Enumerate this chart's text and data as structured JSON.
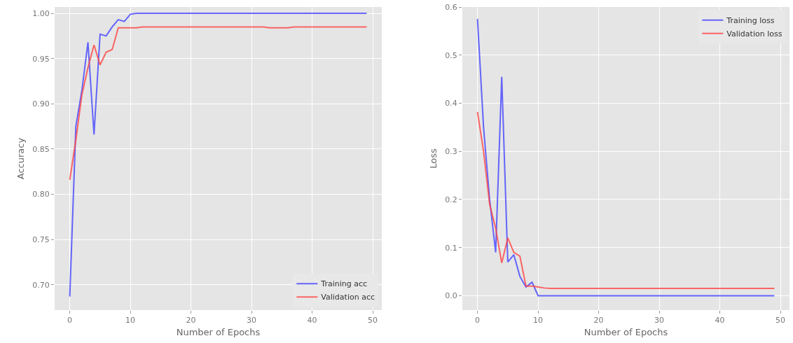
{
  "chart_data": [
    {
      "type": "line",
      "xlabel": "Number of Epochs",
      "ylabel": "Accuracy",
      "x": [
        0,
        1,
        2,
        3,
        4,
        5,
        6,
        7,
        8,
        9,
        10,
        11,
        12,
        13,
        14,
        15,
        16,
        17,
        18,
        19,
        20,
        21,
        22,
        23,
        24,
        25,
        26,
        27,
        28,
        29,
        30,
        31,
        32,
        33,
        34,
        35,
        36,
        37,
        38,
        39,
        40,
        41,
        42,
        43,
        44,
        45,
        46,
        47,
        48,
        49
      ],
      "series": [
        {
          "name": "Training acc",
          "color": "#4444ff",
          "values": [
            0.687,
            0.875,
            0.915,
            0.968,
            0.866,
            0.977,
            0.975,
            0.985,
            0.993,
            0.991,
            0.999,
            1.0,
            1.0,
            1.0,
            1.0,
            1.0,
            1.0,
            1.0,
            1.0,
            1.0,
            1.0,
            1.0,
            1.0,
            1.0,
            1.0,
            1.0,
            1.0,
            1.0,
            1.0,
            1.0,
            1.0,
            1.0,
            1.0,
            1.0,
            1.0,
            1.0,
            1.0,
            1.0,
            1.0,
            1.0,
            1.0,
            1.0,
            1.0,
            1.0,
            1.0,
            1.0,
            1.0,
            1.0,
            1.0,
            1.0
          ]
        },
        {
          "name": "Validation acc",
          "color": "#ff4444",
          "values": [
            0.816,
            0.86,
            0.91,
            0.94,
            0.965,
            0.943,
            0.957,
            0.96,
            0.984,
            0.984,
            0.984,
            0.984,
            0.985,
            0.985,
            0.985,
            0.985,
            0.985,
            0.985,
            0.985,
            0.985,
            0.985,
            0.985,
            0.985,
            0.985,
            0.985,
            0.985,
            0.985,
            0.985,
            0.985,
            0.985,
            0.985,
            0.985,
            0.985,
            0.984,
            0.984,
            0.984,
            0.984,
            0.985,
            0.985,
            0.985,
            0.985,
            0.985,
            0.985,
            0.985,
            0.985,
            0.985,
            0.985,
            0.985,
            0.985,
            0.985
          ]
        }
      ],
      "xlim": [
        -2.5,
        51.5
      ],
      "xticks": [
        0,
        10,
        20,
        30,
        40,
        50
      ],
      "ylim": [
        0.672,
        1.007
      ],
      "yticks": [
        {
          "value": 0.7,
          "label": "0.70"
        },
        {
          "value": 0.75,
          "label": "0.75"
        },
        {
          "value": 0.8,
          "label": "0.80"
        },
        {
          "value": 0.85,
          "label": "0.85"
        },
        {
          "value": 0.9,
          "label": "0.90"
        },
        {
          "value": 0.95,
          "label": "0.95"
        },
        {
          "value": 1.0,
          "label": "1.00"
        }
      ],
      "grid": true,
      "legend": "bottom right"
    },
    {
      "type": "line",
      "xlabel": "Number of Epochs",
      "ylabel": "Loss",
      "x": [
        0,
        1,
        2,
        3,
        4,
        5,
        6,
        7,
        8,
        9,
        10,
        11,
        12,
        13,
        14,
        15,
        16,
        17,
        18,
        19,
        20,
        21,
        22,
        23,
        24,
        25,
        26,
        27,
        28,
        29,
        30,
        31,
        32,
        33,
        34,
        35,
        36,
        37,
        38,
        39,
        40,
        41,
        42,
        43,
        44,
        45,
        46,
        47,
        48,
        49
      ],
      "series": [
        {
          "name": "Training loss",
          "color": "#4444ff",
          "values": [
            0.575,
            0.35,
            0.2,
            0.09,
            0.455,
            0.07,
            0.085,
            0.04,
            0.018,
            0.028,
            0.0,
            0.0,
            0.0,
            0.0,
            0.0,
            0.0,
            0.0,
            0.0,
            0.0,
            0.0,
            0.0,
            0.0,
            0.0,
            0.0,
            0.0,
            0.0,
            0.0,
            0.0,
            0.0,
            0.0,
            0.0,
            0.0,
            0.0,
            0.0,
            0.0,
            0.0,
            0.0,
            0.0,
            0.0,
            0.0,
            0.0,
            0.0,
            0.0,
            0.0,
            0.0,
            0.0,
            0.0,
            0.0,
            0.0,
            0.0
          ]
        },
        {
          "name": "Validation loss",
          "color": "#ff4444",
          "values": [
            0.382,
            0.3,
            0.19,
            0.14,
            0.068,
            0.12,
            0.09,
            0.082,
            0.02,
            0.02,
            0.018,
            0.016,
            0.015,
            0.015,
            0.015,
            0.015,
            0.015,
            0.015,
            0.015,
            0.015,
            0.015,
            0.015,
            0.015,
            0.015,
            0.015,
            0.015,
            0.015,
            0.015,
            0.015,
            0.015,
            0.015,
            0.015,
            0.015,
            0.015,
            0.015,
            0.015,
            0.015,
            0.015,
            0.015,
            0.015,
            0.015,
            0.015,
            0.015,
            0.015,
            0.015,
            0.015,
            0.015,
            0.015,
            0.015,
            0.015
          ]
        }
      ],
      "xlim": [
        -2.5,
        51.5
      ],
      "xticks": [
        0,
        10,
        20,
        30,
        40,
        50
      ],
      "ylim": [
        -0.03,
        0.6
      ],
      "yticks": [
        {
          "value": 0,
          "label": "0.0"
        },
        {
          "value": 0.1,
          "label": "0.1"
        },
        {
          "value": 0.2,
          "label": "0.2"
        },
        {
          "value": 0.3,
          "label": "0.3"
        },
        {
          "value": 0.4,
          "label": "0.4"
        },
        {
          "value": 0.5,
          "label": "0.5"
        },
        {
          "value": 0.6,
          "label": "0.6"
        }
      ],
      "grid": true,
      "legend": "top right"
    }
  ]
}
